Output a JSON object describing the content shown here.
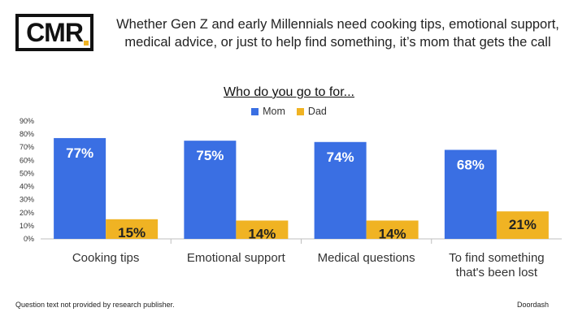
{
  "header": {
    "logo_text": "CMR",
    "headline_line1": "Whether Gen Z and early Millennials need cooking tips, emotional support,",
    "headline_line2": "medical advice, or just to help find something, it’s mom that gets the call"
  },
  "colors": {
    "mom": "#3a6fe3",
    "dad": "#f0b323",
    "logo_dot": "#f0b323"
  },
  "chart_data": {
    "type": "bar",
    "title": "Who do you go to for...",
    "xlabel": "",
    "ylabel": "",
    "ylim": [
      0,
      90
    ],
    "yticks": [
      "0%",
      "10%",
      "20%",
      "30%",
      "40%",
      "50%",
      "60%",
      "70%",
      "80%",
      "90%"
    ],
    "ytick_values": [
      0,
      10,
      20,
      30,
      40,
      50,
      60,
      70,
      80,
      90
    ],
    "categories": [
      [
        "Cooking tips"
      ],
      [
        "Emotional support"
      ],
      [
        "Medical questions"
      ],
      [
        "To find something",
        "that's been lost"
      ]
    ],
    "series": [
      {
        "name": "Mom",
        "values": [
          77,
          75,
          74,
          68
        ],
        "labels": [
          "77%",
          "75%",
          "74%",
          "68%"
        ]
      },
      {
        "name": "Dad",
        "values": [
          15,
          14,
          14,
          21
        ],
        "labels": [
          "15%",
          "14%",
          "14%",
          "21%"
        ]
      }
    ],
    "legend_position": "top-center",
    "grid": false
  },
  "footer": {
    "note": "Question text not provided by research publisher.",
    "source": "Doordash"
  }
}
